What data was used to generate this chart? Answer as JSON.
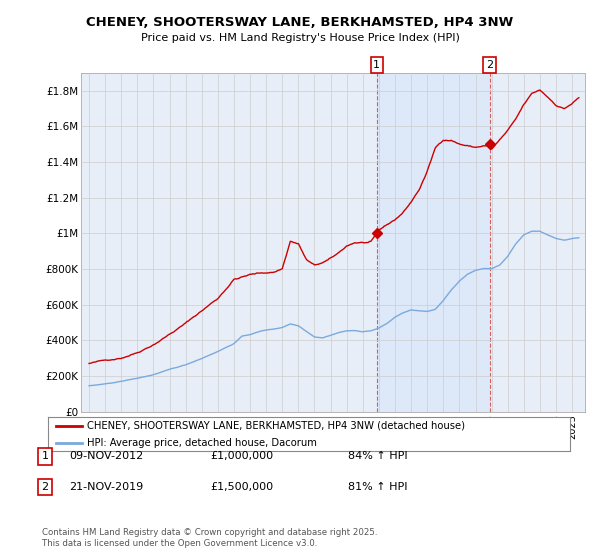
{
  "title": "CHENEY, SHOOTERSWAY LANE, BERKHAMSTED, HP4 3NW",
  "subtitle": "Price paid vs. HM Land Registry's House Price Index (HPI)",
  "background_color": "#ffffff",
  "plot_bg_color": "#e8eef8",
  "ylim": [
    0,
    1900000
  ],
  "yticks": [
    0,
    200000,
    400000,
    600000,
    800000,
    1000000,
    1200000,
    1400000,
    1600000,
    1800000
  ],
  "ytick_labels": [
    "£0",
    "£200K",
    "£400K",
    "£600K",
    "£800K",
    "£1M",
    "£1.2M",
    "£1.4M",
    "£1.6M",
    "£1.8M"
  ],
  "red_line_color": "#cc0000",
  "blue_line_color": "#7aaadd",
  "marker_color": "#cc0000",
  "annotation_box_color": "#cc0000",
  "grid_color": "#cccccc",
  "shade_color": "#d0ddf5",
  "purchase1_x": 2012.87,
  "purchase1_y": 1000000,
  "purchase2_x": 2019.87,
  "purchase2_y": 1500000,
  "legend_entries": [
    "CHENEY, SHOOTERSWAY LANE, BERKHAMSTED, HP4 3NW (detached house)",
    "HPI: Average price, detached house, Dacorum"
  ],
  "table_rows": [
    {
      "num": "1",
      "date": "09-NOV-2012",
      "price": "£1,000,000",
      "hpi": "84% ↑ HPI"
    },
    {
      "num": "2",
      "date": "21-NOV-2019",
      "price": "£1,500,000",
      "hpi": "81% ↑ HPI"
    }
  ],
  "footer": "Contains HM Land Registry data © Crown copyright and database right 2025.\nThis data is licensed under the Open Government Licence v3.0.",
  "xlim_left": 1994.5,
  "xlim_right": 2025.8
}
